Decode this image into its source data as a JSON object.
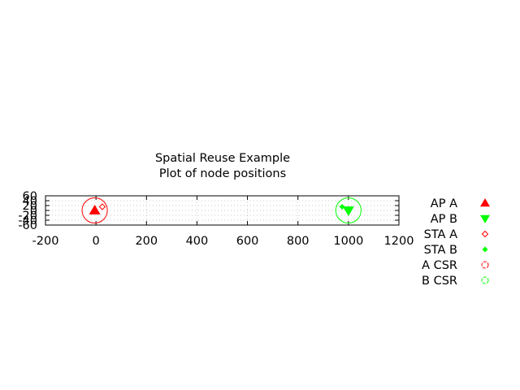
{
  "chart_data": {
    "type": "scatter",
    "title": "Spatial Reuse Example",
    "subtitle": "Plot of node positions",
    "xlabel": "",
    "ylabel": "",
    "xlim": [
      -200,
      1200
    ],
    "ylim": [
      -60,
      60
    ],
    "x_ticks": [
      -200,
      0,
      200,
      400,
      600,
      800,
      1000,
      1200
    ],
    "y_ticks": [
      -60,
      -40,
      -20,
      0,
      20,
      40,
      60
    ],
    "x_tick_labels": [
      "-200",
      "0",
      "200",
      "400",
      "600",
      "800",
      "1000",
      "1200"
    ],
    "y_tick_labels": [
      "-60",
      "-40",
      "-20",
      "0",
      "20",
      "40",
      "60"
    ],
    "grid": true,
    "legend_position": "right",
    "series": [
      {
        "name": "AP A",
        "marker": "triangle-up",
        "color": "#ff0000",
        "points": [
          [
            -5,
            0
          ]
        ]
      },
      {
        "name": "AP B",
        "marker": "triangle-down",
        "color": "#00ff00",
        "points": [
          [
            1000,
            0
          ]
        ]
      },
      {
        "name": "STA A",
        "marker": "diamond-open",
        "color": "#ff0000",
        "points": [
          [
            25,
            15
          ]
        ]
      },
      {
        "name": "STA B",
        "marker": "diamond",
        "color": "#00ff00",
        "points": [
          [
            975,
            15
          ]
        ]
      },
      {
        "name": "A CSR",
        "marker": "circle-open",
        "color": "#ff0000",
        "center": [
          -5,
          0
        ],
        "radius": 50
      },
      {
        "name": "B CSR",
        "marker": "circle-open",
        "color": "#00ff00",
        "center": [
          1000,
          0
        ],
        "radius": 50
      }
    ]
  }
}
